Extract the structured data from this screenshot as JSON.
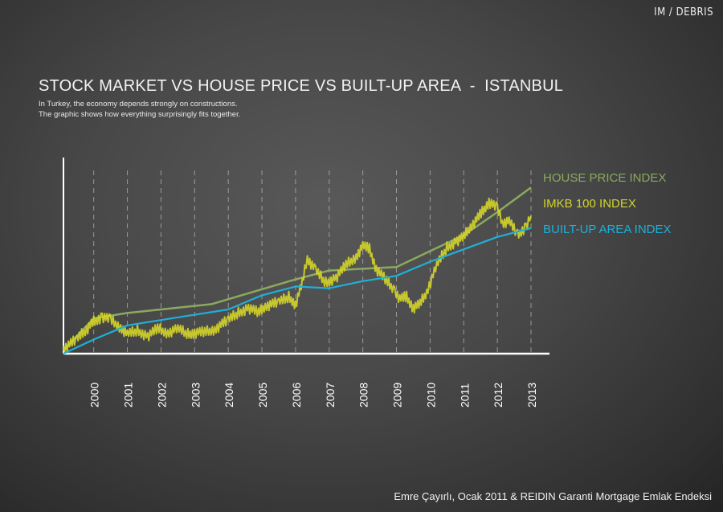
{
  "brand": "IM / DEBRIS",
  "title": "STOCK MARKET VS HOUSE PRICE VS BUILT-UP AREA  -  ISTANBUL",
  "subtitle_lines": [
    "In Turkey, the economy depends strongly on constructions.",
    "The graphic shows how everything surprisingly fits together."
  ],
  "source": "Emre Çayırlı, Ocak 2011 & REIDIN Garanti Mortgage Emlak Endeksi",
  "colors": {
    "house": "#8aaa5e",
    "imkb": "#d4d42a",
    "builtup": "#1eb0d8",
    "axis": "#ffffff",
    "grid": "#bbbbbb"
  },
  "chart_data": {
    "type": "line",
    "title": "STOCK MARKET VS HOUSE PRICE VS BUILT-UP AREA  -  ISTANBUL",
    "x_ticks": [
      "2000",
      "2001",
      "2002",
      "2003",
      "2004",
      "2005",
      "2006",
      "2007",
      "2008",
      "2009",
      "2010",
      "2011",
      "2012",
      "2013"
    ],
    "xlim": [
      1999.1,
      2013.5
    ],
    "ylim": [
      0,
      100
    ],
    "grid": "vertical dashed at each year",
    "legend_placement": "right, inline labels",
    "series": [
      {
        "name": "HOUSE PRICE INDEX",
        "color": "#8aaa5e",
        "x": [
          1999.1,
          2000.0,
          2001.0,
          2002.0,
          2003.5,
          2006.0,
          2007.0,
          2008.0,
          2009.0,
          2010.0,
          2011.0,
          2012.0,
          2013.0
        ],
        "y": [
          2,
          20,
          23,
          25,
          28,
          42,
          47,
          48,
          49,
          58,
          67,
          80,
          94
        ]
      },
      {
        "name": "IMKB 100 INDEX",
        "color": "#d4d42a",
        "x": [
          1999.1,
          1999.5,
          2000.0,
          2000.25,
          2000.5,
          2000.8,
          2001.0,
          2001.3,
          2001.6,
          2001.9,
          2002.2,
          2002.5,
          2002.8,
          2003.0,
          2003.3,
          2003.6,
          2004.0,
          2004.3,
          2004.6,
          2004.9,
          2005.1,
          2005.5,
          2005.8,
          2006.0,
          2006.2,
          2006.35,
          2006.6,
          2006.9,
          2007.2,
          2007.5,
          2007.8,
          2008.0,
          2008.2,
          2008.4,
          2008.7,
          2008.95,
          2009.1,
          2009.3,
          2009.5,
          2009.7,
          2009.9,
          2010.2,
          2010.5,
          2010.8,
          2011.0,
          2011.2,
          2011.35,
          2011.55,
          2011.75,
          2012.0,
          2012.15,
          2012.35,
          2012.6,
          2012.85,
          2013.0
        ],
        "y": [
          3,
          8,
          18,
          21,
          19,
          15,
          11,
          13,
          10,
          14,
          12,
          14,
          11,
          12,
          12,
          14,
          19,
          23,
          26,
          23,
          27,
          29,
          32,
          28,
          40,
          54,
          47,
          40,
          43,
          50,
          55,
          61,
          59,
          48,
          41,
          36,
          31,
          32,
          26,
          28,
          35,
          50,
          60,
          64,
          66,
          72,
          75,
          80,
          86,
          82,
          74,
          75,
          67,
          72,
          78
        ]
      },
      {
        "name": "BUILT-UP AREA INDEX",
        "color": "#1eb0d8",
        "x": [
          1999.1,
          2000.0,
          2001.0,
          2002.0,
          2003.0,
          2004.0,
          2005.0,
          2006.0,
          2007.0,
          2008.0,
          2009.0,
          2010.0,
          2011.0,
          2012.0,
          2013.0
        ],
        "y": [
          0,
          8,
          16,
          19,
          22,
          25,
          33,
          38,
          37,
          41,
          44,
          52,
          59,
          66,
          71
        ]
      }
    ]
  }
}
